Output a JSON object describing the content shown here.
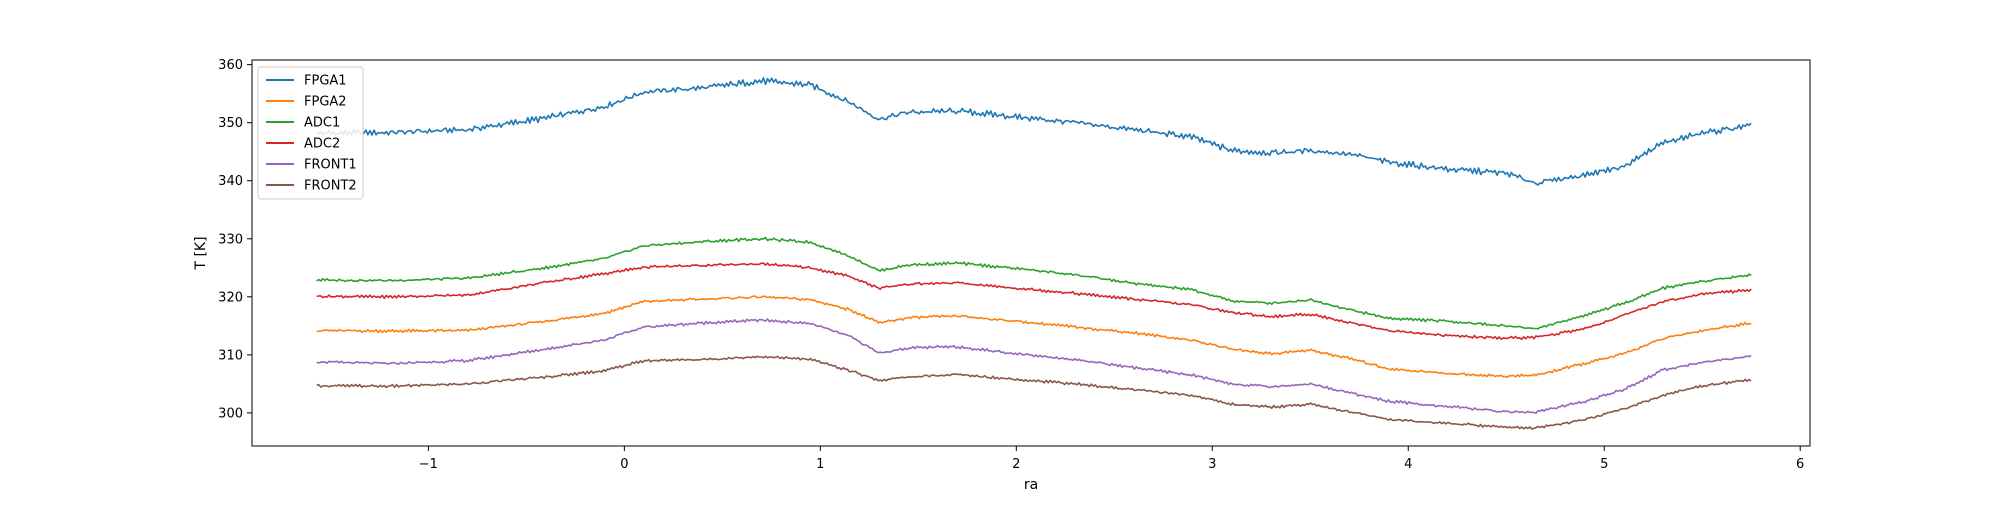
{
  "chart_data": {
    "type": "line",
    "title": "",
    "xlabel": "ra",
    "ylabel": "T [K]",
    "xlim": [
      -1.9,
      6.05
    ],
    "ylim": [
      294.3,
      360.8
    ],
    "xticks": [
      -1,
      0,
      1,
      2,
      3,
      4,
      5,
      6
    ],
    "xtick_labels": [
      "−1",
      "0",
      "1",
      "2",
      "3",
      "4",
      "5",
      "6"
    ],
    "yticks": [
      300,
      310,
      320,
      330,
      340,
      350,
      360
    ],
    "ytick_labels": [
      "300",
      "310",
      "320",
      "330",
      "340",
      "350",
      "360"
    ],
    "grid": false,
    "legend_position": "upper left",
    "x": [
      -1.57,
      -1.2,
      -0.8,
      -0.4,
      -0.1,
      0.1,
      0.4,
      0.7,
      0.95,
      1.15,
      1.3,
      1.45,
      1.7,
      2.0,
      2.3,
      2.6,
      2.9,
      3.1,
      3.3,
      3.5,
      3.7,
      3.9,
      4.2,
      4.5,
      4.65,
      4.9,
      5.1,
      5.3,
      5.5,
      5.75
    ],
    "series": [
      {
        "name": "FPGA1",
        "color": "#1f77b4",
        "values": [
          348.2,
          348.3,
          348.8,
          350.8,
          352.8,
          355.3,
          356.0,
          357.2,
          356.5,
          353.5,
          350.6,
          351.8,
          352.0,
          351.0,
          350.0,
          348.8,
          347.5,
          345.2,
          344.8,
          345.2,
          344.6,
          343.2,
          342.0,
          341.3,
          339.6,
          341.0,
          342.5,
          346.5,
          348.2,
          349.5
        ]
      },
      {
        "name": "FPGA2",
        "color": "#ff7f0e",
        "values": [
          314.2,
          314.1,
          314.2,
          315.8,
          317.2,
          319.2,
          319.6,
          320.0,
          319.5,
          317.8,
          315.5,
          316.4,
          316.7,
          315.8,
          314.8,
          313.8,
          312.5,
          311.0,
          310.2,
          310.8,
          309.4,
          307.6,
          306.8,
          306.3,
          306.5,
          308.5,
          310.2,
          312.8,
          314.2,
          315.5
        ]
      },
      {
        "name": "ADC1",
        "color": "#2ca02c",
        "values": [
          322.9,
          322.8,
          323.2,
          325.0,
          326.6,
          328.8,
          329.5,
          330.0,
          329.4,
          327.0,
          324.5,
          325.5,
          325.8,
          324.9,
          323.8,
          322.3,
          321.2,
          319.3,
          318.9,
          319.5,
          317.8,
          316.3,
          315.8,
          315.0,
          314.5,
          316.8,
          318.9,
          321.5,
          322.7,
          323.8
        ]
      },
      {
        "name": "ADC2",
        "color": "#d62728",
        "values": [
          320.1,
          320.0,
          320.3,
          322.5,
          324.0,
          325.1,
          325.4,
          325.7,
          325.0,
          323.5,
          321.5,
          322.2,
          322.4,
          321.5,
          320.6,
          319.6,
          318.6,
          317.3,
          316.6,
          317.0,
          315.6,
          314.2,
          313.3,
          312.9,
          313.0,
          314.5,
          316.8,
          319.2,
          320.5,
          321.2
        ]
      },
      {
        "name": "FRONT1",
        "color": "#9467bd",
        "values": [
          308.8,
          308.5,
          309.0,
          311.0,
          312.6,
          314.8,
          315.5,
          316.0,
          315.4,
          313.2,
          310.3,
          311.2,
          311.4,
          310.2,
          309.2,
          307.8,
          306.5,
          305.0,
          304.5,
          305.0,
          303.5,
          302.0,
          301.1,
          300.2,
          300.1,
          302.0,
          304.0,
          307.4,
          308.7,
          309.8
        ]
      },
      {
        "name": "FRONT2",
        "color": "#8c564b",
        "values": [
          304.7,
          304.6,
          305.0,
          306.2,
          307.3,
          309.0,
          309.2,
          309.7,
          309.2,
          307.3,
          305.6,
          306.2,
          306.6,
          305.8,
          305.0,
          304.0,
          303.0,
          301.5,
          301.0,
          301.5,
          300.2,
          298.9,
          298.2,
          297.6,
          297.4,
          298.8,
          300.7,
          303.0,
          304.7,
          305.7
        ]
      }
    ]
  }
}
